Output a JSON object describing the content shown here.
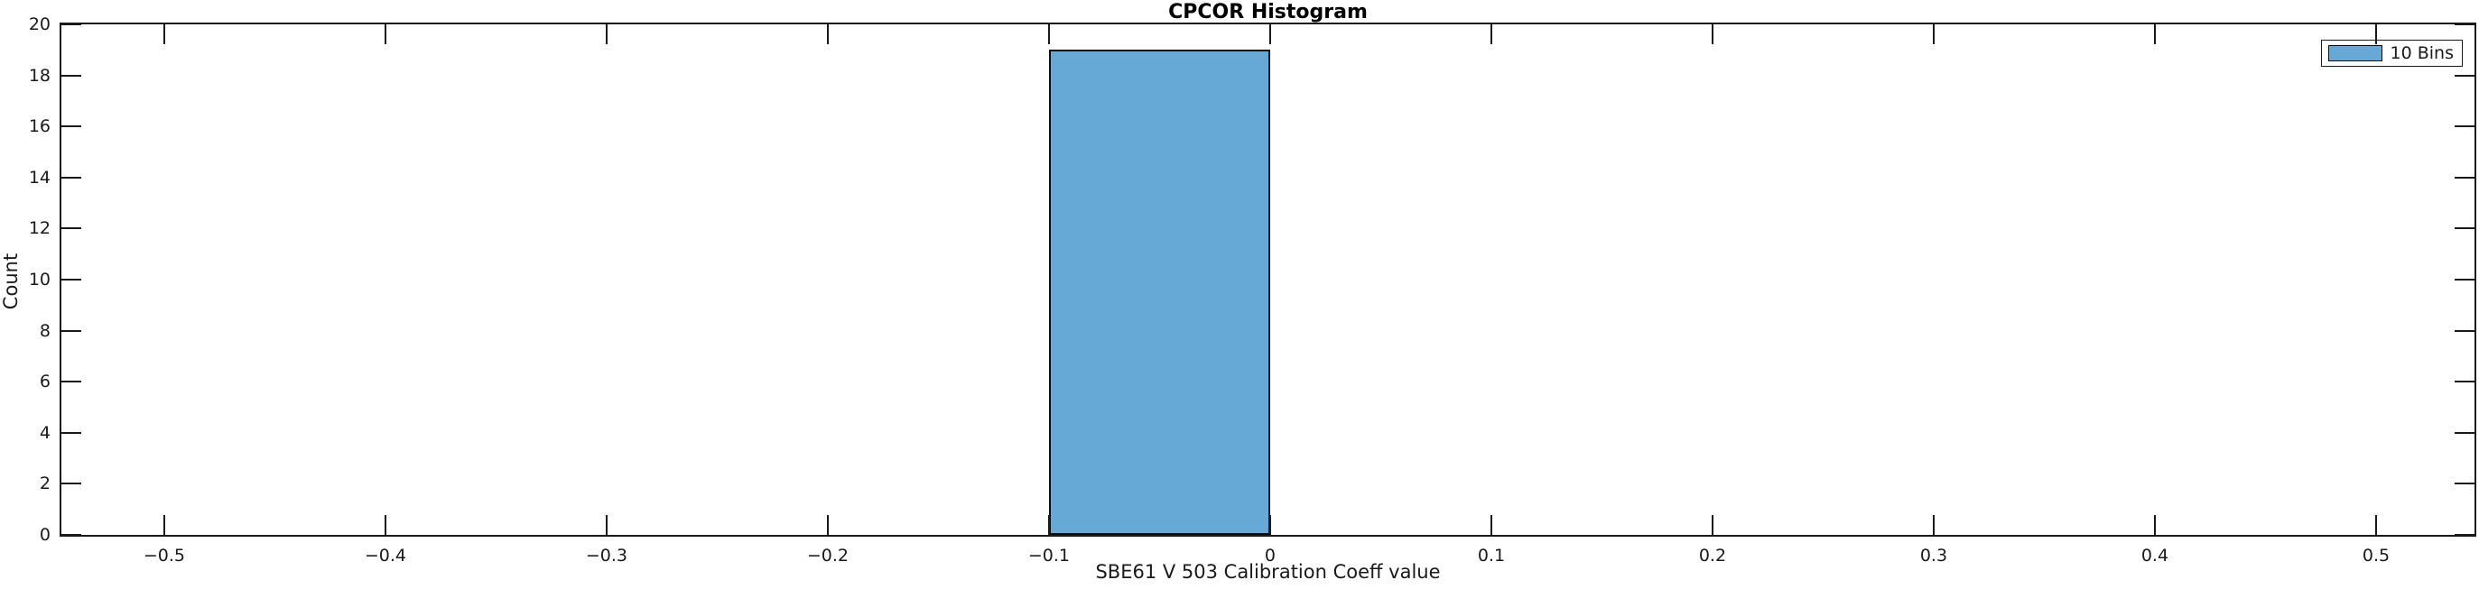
{
  "figure": {
    "background": "#ffffff"
  },
  "chart_data": {
    "type": "bar",
    "subtype": "histogram",
    "title": "CPCOR Histogram",
    "xlabel": "SBE61 V 503 Calibration Coeff value",
    "ylabel": "Count",
    "xlim": [
      -0.5465,
      0.5445
    ],
    "ylim": [
      0,
      20
    ],
    "grid": false,
    "tick_direction": "in",
    "ticks_mirrored_on_box": true,
    "x_ticks": [
      -0.5,
      -0.4,
      -0.3,
      -0.2,
      -0.1,
      0,
      0.1,
      0.2,
      0.3,
      0.4,
      0.5
    ],
    "x_tick_labels": [
      "−0.5",
      "−0.4",
      "−0.3",
      "−0.2",
      "−0.1",
      "0",
      "0.1",
      "0.2",
      "0.3",
      "0.4",
      "0.5"
    ],
    "y_ticks": [
      0,
      2,
      4,
      6,
      8,
      10,
      12,
      14,
      16,
      18,
      20
    ],
    "y_tick_labels": [
      "0",
      "2",
      "4",
      "6",
      "8",
      "10",
      "12",
      "14",
      "16",
      "18",
      "20"
    ],
    "bars": [
      {
        "x_start": -0.1,
        "x_end": 0,
        "count": 19
      }
    ],
    "legend": {
      "label": "10 Bins",
      "position": "top-right"
    },
    "colors": {
      "bar_fill": "#66a9d6",
      "bar_edge": "#0d0d0d",
      "axis": "#1a1a1a",
      "text": "#1a1a1a",
      "title": "#000000",
      "background": "#ffffff"
    }
  }
}
